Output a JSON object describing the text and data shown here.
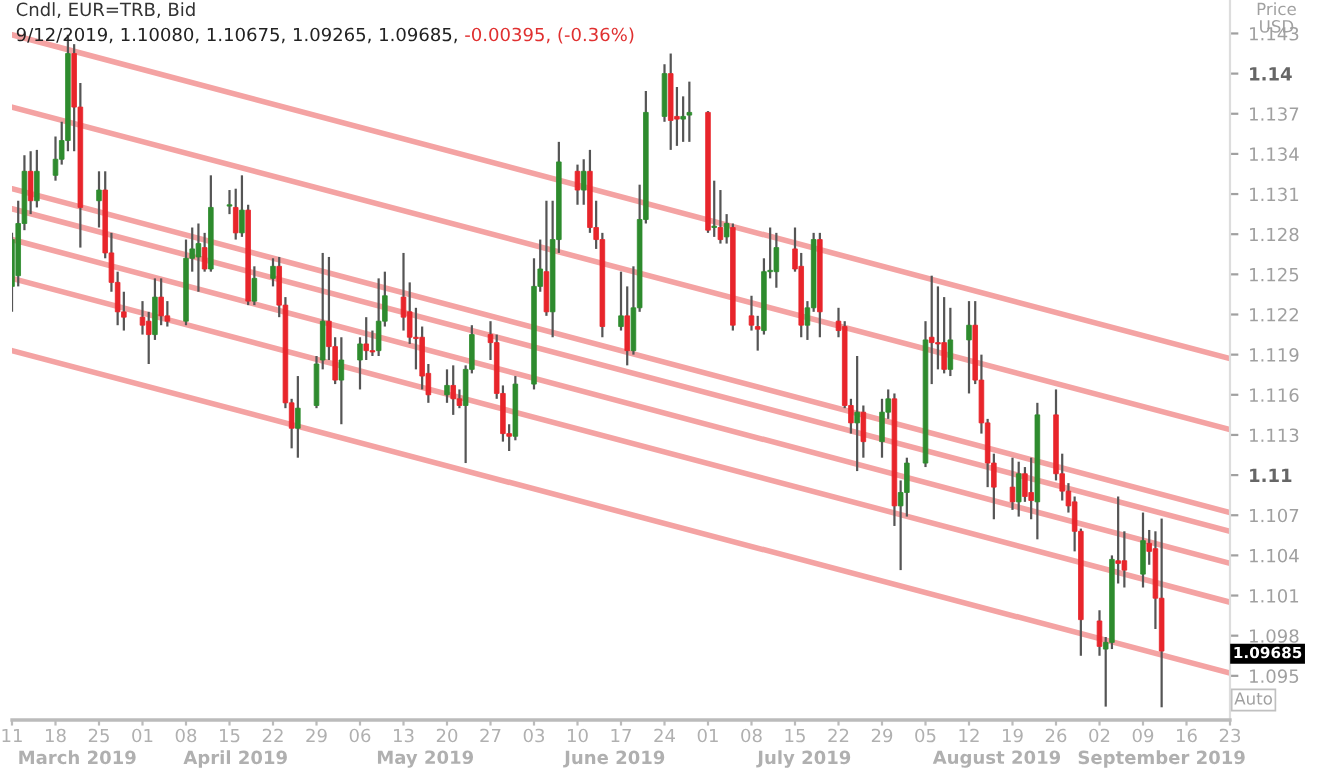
{
  "chart_data": {
    "type": "candlestick",
    "title": "Cndl, EUR=TRB, Bid",
    "subtitle": "9/12/2019, 1.10080, 1.10675, 1.09265, 1.09685,",
    "ylabel": "Price\nUSD",
    "annotations": [
      "-0.00395, (-0.36%)",
      "1.09685",
      "March 2019",
      "April 2019",
      "May 2019",
      "June 2019",
      "July 2019",
      "August 2019",
      "September 2019",
      "Auto"
    ],
    "xlim": [
      "2019-03-11",
      "2019-09-23"
    ],
    "xticks": [
      {
        "value": "2019-03-11",
        "label": "11"
      },
      {
        "value": "2019-03-18",
        "label": "18"
      },
      {
        "value": "2019-03-25",
        "label": "25"
      },
      {
        "value": "2019-04-01",
        "label": "01"
      },
      {
        "value": "2019-04-08",
        "label": "08"
      },
      {
        "value": "2019-04-15",
        "label": "15"
      },
      {
        "value": "2019-04-22",
        "label": "22"
      },
      {
        "value": "2019-04-29",
        "label": "29"
      },
      {
        "value": "2019-05-06",
        "label": "06"
      },
      {
        "value": "2019-05-13",
        "label": "13"
      },
      {
        "value": "2019-05-20",
        "label": "20"
      },
      {
        "value": "2019-05-27",
        "label": "27"
      },
      {
        "value": "2019-06-03",
        "label": "03"
      },
      {
        "value": "2019-06-10",
        "label": "10"
      },
      {
        "value": "2019-06-17",
        "label": "17"
      },
      {
        "value": "2019-06-24",
        "label": "24"
      },
      {
        "value": "2019-07-01",
        "label": "01"
      },
      {
        "value": "2019-07-08",
        "label": "08"
      },
      {
        "value": "2019-07-15",
        "label": "15"
      },
      {
        "value": "2019-07-22",
        "label": "22"
      },
      {
        "value": "2019-07-29",
        "label": "29"
      },
      {
        "value": "2019-08-05",
        "label": "05"
      },
      {
        "value": "2019-08-12",
        "label": "12"
      },
      {
        "value": "2019-08-19",
        "label": "19"
      },
      {
        "value": "2019-08-26",
        "label": "26"
      },
      {
        "value": "2019-09-02",
        "label": "02"
      },
      {
        "value": "2019-09-09",
        "label": "09"
      },
      {
        "value": "2019-09-16",
        "label": "16"
      },
      {
        "value": "2019-09-23",
        "label": "23"
      }
    ],
    "ylim": [
      1.0917,
      1.1455
    ],
    "yticks": [
      1.095,
      1.098,
      1.101,
      1.104,
      1.107,
      1.11,
      1.113,
      1.116,
      1.119,
      1.122,
      1.125,
      1.128,
      1.131,
      1.134,
      1.137,
      1.14,
      1.143
    ],
    "x": [
      "2019-03-11",
      "2019-03-12",
      "2019-03-13",
      "2019-03-14",
      "2019-03-15",
      "2019-03-18",
      "2019-03-19",
      "2019-03-20",
      "2019-03-21",
      "2019-03-22",
      "2019-03-25",
      "2019-03-26",
      "2019-03-27",
      "2019-03-28",
      "2019-03-29",
      "2019-04-01",
      "2019-04-02",
      "2019-04-03",
      "2019-04-04",
      "2019-04-05",
      "2019-04-08",
      "2019-04-09",
      "2019-04-10",
      "2019-04-11",
      "2019-04-12",
      "2019-04-15",
      "2019-04-16",
      "2019-04-17",
      "2019-04-18",
      "2019-04-19",
      "2019-04-22",
      "2019-04-23",
      "2019-04-24",
      "2019-04-25",
      "2019-04-26",
      "2019-04-29",
      "2019-04-30",
      "2019-05-01",
      "2019-05-02",
      "2019-05-03",
      "2019-05-06",
      "2019-05-07",
      "2019-05-08",
      "2019-05-09",
      "2019-05-10",
      "2019-05-13",
      "2019-05-14",
      "2019-05-15",
      "2019-05-16",
      "2019-05-17",
      "2019-05-20",
      "2019-05-21",
      "2019-05-22",
      "2019-05-23",
      "2019-05-24",
      "2019-05-27",
      "2019-05-28",
      "2019-05-29",
      "2019-05-30",
      "2019-05-31",
      "2019-06-03",
      "2019-06-04",
      "2019-06-05",
      "2019-06-06",
      "2019-06-07",
      "2019-06-10",
      "2019-06-11",
      "2019-06-12",
      "2019-06-13",
      "2019-06-14",
      "2019-06-17",
      "2019-06-18",
      "2019-06-19",
      "2019-06-20",
      "2019-06-21",
      "2019-06-24",
      "2019-06-25",
      "2019-06-26",
      "2019-06-27",
      "2019-06-28",
      "2019-07-01",
      "2019-07-02",
      "2019-07-03",
      "2019-07-04",
      "2019-07-05",
      "2019-07-08",
      "2019-07-09",
      "2019-07-10",
      "2019-07-11",
      "2019-07-12",
      "2019-07-15",
      "2019-07-16",
      "2019-07-17",
      "2019-07-18",
      "2019-07-19",
      "2019-07-22",
      "2019-07-23",
      "2019-07-24",
      "2019-07-25",
      "2019-07-26",
      "2019-07-29",
      "2019-07-30",
      "2019-07-31",
      "2019-08-01",
      "2019-08-02",
      "2019-08-05",
      "2019-08-06",
      "2019-08-07",
      "2019-08-08",
      "2019-08-09",
      "2019-08-12",
      "2019-08-13",
      "2019-08-14",
      "2019-08-15",
      "2019-08-16",
      "2019-08-19",
      "2019-08-20",
      "2019-08-21",
      "2019-08-22",
      "2019-08-23",
      "2019-08-26",
      "2019-08-27",
      "2019-08-28",
      "2019-08-29",
      "2019-08-30",
      "2019-09-02",
      "2019-09-03",
      "2019-09-04",
      "2019-09-05",
      "2019-09-06",
      "2019-09-09",
      "2019-09-10",
      "2019-09-11",
      "2019-09-12"
    ],
    "ohlc": [
      [
        1.1241,
        1.1281,
        1.1222,
        1.1276
      ],
      [
        1.1249,
        1.1305,
        1.1241,
        1.1288
      ],
      [
        1.1288,
        1.1339,
        1.1283,
        1.1327
      ],
      [
        1.1327,
        1.1342,
        1.1295,
        1.1305
      ],
      [
        1.1305,
        1.1343,
        1.13,
        1.1327
      ],
      [
        1.1324,
        1.1353,
        1.132,
        1.1336
      ],
      [
        1.1336,
        1.1364,
        1.1332,
        1.135
      ],
      [
        1.135,
        1.1429,
        1.1342,
        1.1415
      ],
      [
        1.1415,
        1.1422,
        1.1342,
        1.1375
      ],
      [
        1.1375,
        1.1393,
        1.127,
        1.13
      ],
      [
        1.1305,
        1.1327,
        1.1285,
        1.1313
      ],
      [
        1.1313,
        1.1327,
        1.1262,
        1.1266
      ],
      [
        1.1266,
        1.1281,
        1.1237,
        1.1244
      ],
      [
        1.1244,
        1.1252,
        1.1212,
        1.1222
      ],
      [
        1.1222,
        1.1237,
        1.1208,
        1.1218
      ],
      [
        1.1218,
        1.123,
        1.1205,
        1.1212
      ],
      [
        1.1215,
        1.1222,
        1.1183,
        1.1205
      ],
      [
        1.1205,
        1.1247,
        1.1201,
        1.1233
      ],
      [
        1.1233,
        1.1247,
        1.1212,
        1.1219
      ],
      [
        1.1219,
        1.123,
        1.1211,
        1.1215
      ],
      [
        1.1215,
        1.1276,
        1.1212,
        1.1262
      ],
      [
        1.1262,
        1.1285,
        1.1252,
        1.1269
      ],
      [
        1.1263,
        1.1288,
        1.1237,
        1.1273
      ],
      [
        1.127,
        1.1281,
        1.1252,
        1.1254
      ],
      [
        1.1254,
        1.1324,
        1.1252,
        1.13
      ],
      [
        1.1301,
        1.1313,
        1.1295,
        1.1302
      ],
      [
        1.13,
        1.1314,
        1.1276,
        1.1281
      ],
      [
        1.1281,
        1.1324,
        1.1278,
        1.1298
      ],
      [
        1.1298,
        1.1302,
        1.1227,
        1.123
      ],
      [
        1.123,
        1.1256,
        1.1227,
        1.1247
      ],
      [
        1.1247,
        1.1262,
        1.1241,
        1.1256
      ],
      [
        1.1256,
        1.1263,
        1.1218,
        1.1227
      ],
      [
        1.1227,
        1.1233,
        1.115,
        1.1154
      ],
      [
        1.1154,
        1.1157,
        1.112,
        1.1135
      ],
      [
        1.1135,
        1.1174,
        1.1113,
        1.115
      ],
      [
        1.1152,
        1.1189,
        1.115,
        1.1183
      ],
      [
        1.1186,
        1.1266,
        1.1179,
        1.1215
      ],
      [
        1.1215,
        1.1263,
        1.1186,
        1.1196
      ],
      [
        1.1196,
        1.1203,
        1.1168,
        1.1171
      ],
      [
        1.1171,
        1.1203,
        1.1138,
        1.1186
      ],
      [
        1.1186,
        1.1203,
        1.1164,
        1.1198
      ],
      [
        1.1198,
        1.1218,
        1.1186,
        1.1193
      ],
      [
        1.1193,
        1.1208,
        1.1189,
        1.1192
      ],
      [
        1.1193,
        1.1247,
        1.1189,
        1.1215
      ],
      [
        1.1215,
        1.1252,
        1.1211,
        1.1234
      ],
      [
        1.1233,
        1.1266,
        1.1208,
        1.1218
      ],
      [
        1.1222,
        1.1244,
        1.1198,
        1.1203
      ],
      [
        1.1203,
        1.1225,
        1.1179,
        1.1202
      ],
      [
        1.1203,
        1.1211,
        1.1164,
        1.1174
      ],
      [
        1.1176,
        1.1183,
        1.1154,
        1.116
      ],
      [
        1.116,
        1.1179,
        1.1154,
        1.1167
      ],
      [
        1.1167,
        1.1182,
        1.1145,
        1.1157
      ],
      [
        1.1157,
        1.1164,
        1.115,
        1.1152
      ],
      [
        1.1152,
        1.1182,
        1.1109,
        1.1179
      ],
      [
        1.1179,
        1.1212,
        1.1176,
        1.1205
      ],
      [
        1.1205,
        1.1215,
        1.1186,
        1.1199
      ],
      [
        1.1199,
        1.1205,
        1.1157,
        1.1161
      ],
      [
        1.1161,
        1.1167,
        1.1125,
        1.1131
      ],
      [
        1.1131,
        1.1138,
        1.1118,
        1.1129
      ],
      [
        1.1129,
        1.1174,
        1.1126,
        1.1168
      ],
      [
        1.1168,
        1.1262,
        1.1164,
        1.1241
      ],
      [
        1.1241,
        1.1276,
        1.1237,
        1.1254
      ],
      [
        1.1252,
        1.1305,
        1.1219,
        1.1222
      ],
      [
        1.1222,
        1.1305,
        1.1203,
        1.1276
      ],
      [
        1.1276,
        1.1349,
        1.1266,
        1.1334
      ],
      [
        1.1327,
        1.1332,
        1.1302,
        1.1313
      ],
      [
        1.1313,
        1.1336,
        1.1302,
        1.1327
      ],
      [
        1.1327,
        1.1343,
        1.1281,
        1.1285
      ],
      [
        1.1285,
        1.1305,
        1.1269,
        1.1276
      ],
      [
        1.1276,
        1.1281,
        1.1203,
        1.1211
      ],
      [
        1.1211,
        1.1252,
        1.1208,
        1.1219
      ],
      [
        1.1219,
        1.1241,
        1.1182,
        1.1193
      ],
      [
        1.1193,
        1.1256,
        1.119,
        1.1225
      ],
      [
        1.1225,
        1.1317,
        1.1222,
        1.1291
      ],
      [
        1.1291,
        1.1387,
        1.1288,
        1.1371
      ],
      [
        1.1368,
        1.1407,
        1.1364,
        1.14
      ],
      [
        1.14,
        1.1415,
        1.1343,
        1.1365
      ],
      [
        1.1368,
        1.139,
        1.1346,
        1.1366
      ],
      [
        1.1366,
        1.1383,
        1.1349,
        1.1368
      ],
      [
        1.1369,
        1.1394,
        1.1349,
        1.1371
      ],
      [
        1.1371,
        1.1372,
        1.1281,
        1.1283
      ],
      [
        1.1285,
        1.132,
        1.1278,
        1.1286
      ],
      [
        1.1285,
        1.1313,
        1.1273,
        1.1276
      ],
      [
        1.1278,
        1.1295,
        1.1273,
        1.1288
      ],
      [
        1.1285,
        1.1288,
        1.1208,
        1.1212
      ],
      [
        1.1219,
        1.1234,
        1.1208,
        1.1212
      ],
      [
        1.1211,
        1.1219,
        1.1193,
        1.1209
      ],
      [
        1.1208,
        1.1262,
        1.1205,
        1.1252
      ],
      [
        1.1252,
        1.1285,
        1.1247,
        1.1253
      ],
      [
        1.1252,
        1.1281,
        1.124,
        1.127
      ],
      [
        1.1269,
        1.1285,
        1.1252,
        1.1254
      ],
      [
        1.1256,
        1.1266,
        1.1203,
        1.1212
      ],
      [
        1.1212,
        1.123,
        1.1201,
        1.1225
      ],
      [
        1.1225,
        1.1281,
        1.1222,
        1.1276
      ],
      [
        1.1276,
        1.1281,
        1.1203,
        1.1222
      ],
      [
        1.1215,
        1.1225,
        1.1203,
        1.1208
      ],
      [
        1.1211,
        1.1215,
        1.115,
        1.1152
      ],
      [
        1.1152,
        1.1157,
        1.1131,
        1.1139
      ],
      [
        1.1139,
        1.1189,
        1.1103,
        1.1147
      ],
      [
        1.1147,
        1.1152,
        1.1113,
        1.1125
      ],
      [
        1.1125,
        1.1157,
        1.1113,
        1.1147
      ],
      [
        1.1147,
        1.1164,
        1.1142,
        1.1157
      ],
      [
        1.1157,
        1.1161,
        1.1062,
        1.1077
      ],
      [
        1.1077,
        1.1096,
        1.1029,
        1.1087
      ],
      [
        1.1087,
        1.1113,
        1.1069,
        1.1109
      ],
      [
        1.1109,
        1.1215,
        1.1106,
        1.1201
      ],
      [
        1.1203,
        1.1249,
        1.1168,
        1.1199
      ],
      [
        1.1199,
        1.1241,
        1.1179,
        1.1198
      ],
      [
        1.1199,
        1.1233,
        1.1176,
        1.1179
      ],
      [
        1.1179,
        1.1225,
        1.1174,
        1.1201
      ],
      [
        1.1201,
        1.123,
        1.1161,
        1.1212
      ],
      [
        1.1212,
        1.123,
        1.1168,
        1.1171
      ],
      [
        1.1171,
        1.119,
        1.1131,
        1.1139
      ],
      [
        1.1139,
        1.1142,
        1.1091,
        1.1109
      ],
      [
        1.1109,
        1.1116,
        1.1067,
        1.1091
      ],
      [
        1.1091,
        1.1113,
        1.1074,
        1.108
      ],
      [
        1.108,
        1.111,
        1.1069,
        1.1101
      ],
      [
        1.1101,
        1.1106,
        1.108,
        1.1084
      ],
      [
        1.1087,
        1.1113,
        1.1067,
        1.1081
      ],
      [
        1.108,
        1.1154,
        1.1052,
        1.1145
      ],
      [
        1.1145,
        1.1164,
        1.1096,
        1.1101
      ],
      [
        1.1101,
        1.1116,
        1.1081,
        1.1088
      ],
      [
        1.1088,
        1.1094,
        1.1072,
        1.1077
      ],
      [
        1.108,
        1.1084,
        1.1043,
        1.1058
      ],
      [
        1.1058,
        1.106,
        1.0965,
        1.0992
      ],
      [
        1.0991,
        1.0999,
        1.0965,
        1.0972
      ],
      [
        1.097,
        1.0979,
        1.0927,
        1.0975
      ],
      [
        1.0975,
        1.104,
        1.097,
        1.1037
      ],
      [
        1.1036,
        1.1084,
        1.1019,
        1.1034
      ],
      [
        1.1036,
        1.1058,
        1.1016,
        1.1029
      ],
      [
        1.1026,
        1.1072,
        1.1016,
        1.1051
      ],
      [
        1.1049,
        1.1059,
        1.1033,
        1.1043
      ],
      [
        1.1045,
        1.1058,
        1.0985,
        1.1008
      ],
      [
        1.1008,
        1.10675,
        1.09265,
        1.09685
      ]
    ],
    "colors": [
      "#2e8b2e",
      "#2e8b2e",
      "#2e8b2e",
      "#e8252b",
      "#2e8b2e",
      "#2e8b2e",
      "#2e8b2e",
      "#2e8b2e",
      "#e8252b",
      "#e8252b",
      "#2e8b2e",
      "#e8252b",
      "#e8252b",
      "#e8252b",
      "#e8252b",
      "#e8252b",
      "#e8252b",
      "#2e8b2e",
      "#e8252b",
      "#e8252b",
      "#2e8b2e",
      "#2e8b2e",
      "#2e8b2e",
      "#e8252b",
      "#2e8b2e",
      "#2e8b2e",
      "#e8252b",
      "#2e8b2e",
      "#e8252b",
      "#2e8b2e",
      "#2e8b2e",
      "#e8252b",
      "#e8252b",
      "#e8252b",
      "#2e8b2e",
      "#2e8b2e",
      "#2e8b2e",
      "#e8252b",
      "#e8252b",
      "#2e8b2e",
      "#2e8b2e",
      "#e8252b",
      "#e8252b",
      "#2e8b2e",
      "#2e8b2e",
      "#e8252b",
      "#e8252b",
      "#e8252b",
      "#e8252b",
      "#e8252b",
      "#2e8b2e",
      "#e8252b",
      "#e8252b",
      "#2e8b2e",
      "#2e8b2e",
      "#e8252b",
      "#e8252b",
      "#e8252b",
      "#e8252b",
      "#2e8b2e",
      "#2e8b2e",
      "#2e8b2e",
      "#e8252b",
      "#2e8b2e",
      "#2e8b2e",
      "#e8252b",
      "#2e8b2e",
      "#e8252b",
      "#e8252b",
      "#e8252b",
      "#2e8b2e",
      "#e8252b",
      "#2e8b2e",
      "#2e8b2e",
      "#2e8b2e",
      "#2e8b2e",
      "#e8252b",
      "#e8252b",
      "#2e8b2e",
      "#2e8b2e",
      "#e8252b",
      "#2e8b2e",
      "#e8252b",
      "#2e8b2e",
      "#e8252b",
      "#e8252b",
      "#e8252b",
      "#2e8b2e",
      "#2e8b2e",
      "#2e8b2e",
      "#e8252b",
      "#e8252b",
      "#2e8b2e",
      "#2e8b2e",
      "#e8252b",
      "#e8252b",
      "#e8252b",
      "#e8252b",
      "#2e8b2e",
      "#e8252b",
      "#2e8b2e",
      "#2e8b2e",
      "#e8252b",
      "#2e8b2e",
      "#2e8b2e",
      "#2e8b2e",
      "#e8252b",
      "#e8252b",
      "#e8252b",
      "#2e8b2e",
      "#2e8b2e",
      "#e8252b",
      "#e8252b",
      "#e8252b",
      "#e8252b",
      "#e8252b",
      "#2e8b2e",
      "#e8252b",
      "#e8252b",
      "#2e8b2e",
      "#e8252b",
      "#e8252b",
      "#e8252b",
      "#e8252b",
      "#e8252b",
      "#e8252b",
      "#2e8b2e",
      "#2e8b2e",
      "#e8252b",
      "#e8252b",
      "#2e8b2e",
      "#e8252b",
      "#e8252b",
      "#e8252b"
    ],
    "series": [
      {
        "type": "line",
        "color": "#f4a3a3",
        "x": [
          "2019-03-11",
          "2019-09-23"
        ],
        "values": [
          1.1429,
          1.1187
        ]
      },
      {
        "type": "line",
        "color": "#f4a3a3",
        "x": [
          "2019-03-11",
          "2019-09-23"
        ],
        "values": [
          1.1375,
          1.1134
        ]
      },
      {
        "type": "line",
        "color": "#f4a3a3",
        "x": [
          "2019-03-11",
          "2019-09-23"
        ],
        "values": [
          1.1314,
          1.1072
        ]
      },
      {
        "type": "line",
        "color": "#f4a3a3",
        "x": [
          "2019-03-11",
          "2019-09-23"
        ],
        "values": [
          1.1299,
          1.1058
        ]
      },
      {
        "type": "line",
        "color": "#f4a3a3",
        "x": [
          "2019-03-11",
          "2019-09-23"
        ],
        "values": [
          1.1276,
          1.1034
        ]
      },
      {
        "type": "line",
        "color": "#f4a3a3",
        "x": [
          "2019-03-11",
          "2019-09-23"
        ],
        "values": [
          1.1247,
          1.1005
        ]
      },
      {
        "type": "line",
        "color": "#f4a3a3",
        "x": [
          "2019-03-11",
          "2019-09-23"
        ],
        "values": [
          1.1193,
          1.0952
        ]
      }
    ]
  }
}
